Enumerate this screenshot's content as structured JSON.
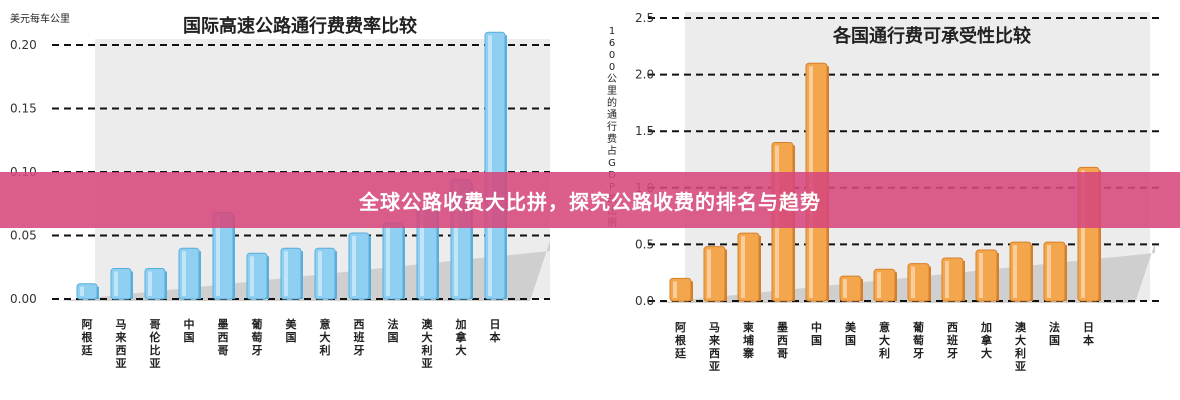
{
  "accent_left": "#8fd0f2",
  "accent_right": "#f4a64c",
  "banner": {
    "text": "全球公路收费大比拼，探究公路收费的排名与趋势",
    "color": "#d6487c"
  },
  "chart_data": [
    {
      "type": "bar",
      "title": "国际高速公路通行费费率比较",
      "ylabel": "美元每车公里",
      "ylim": [
        0,
        0.2
      ],
      "yticks": [
        "0.00",
        "0.05",
        "0.10",
        "0.15",
        "0.20"
      ],
      "grid": true,
      "categories": [
        "阿根廷",
        "马来西亚",
        "哥伦比亚",
        "中国",
        "墨西哥",
        "葡萄牙",
        "美国",
        "意大利",
        "西班牙",
        "法国",
        "澳大利亚",
        "加拿大",
        "日本"
      ],
      "values": [
        0.012,
        0.024,
        0.024,
        0.04,
        0.068,
        0.036,
        0.04,
        0.04,
        0.052,
        0.06,
        0.072,
        0.094,
        0.21
      ]
    },
    {
      "type": "bar",
      "title": "各国通行费可承受性比较",
      "ylabel": "1600公里的通行费占GDP的比例",
      "ylim": [
        0,
        2.5
      ],
      "yticks": [
        "0.0",
        "0.5",
        "1.0",
        "1.5",
        "2.0",
        "2.5"
      ],
      "grid": true,
      "categories": [
        "阿根廷",
        "马来西亚",
        "柬埔寨",
        "墨西哥",
        "中国",
        "美国",
        "意大利",
        "葡萄牙",
        "西班牙",
        "加拿大",
        "澳大利亚",
        "法国",
        "日本"
      ],
      "values": [
        0.2,
        0.48,
        0.6,
        1.4,
        2.1,
        0.22,
        0.28,
        0.33,
        0.38,
        0.45,
        0.52,
        0.52,
        1.18
      ]
    }
  ]
}
